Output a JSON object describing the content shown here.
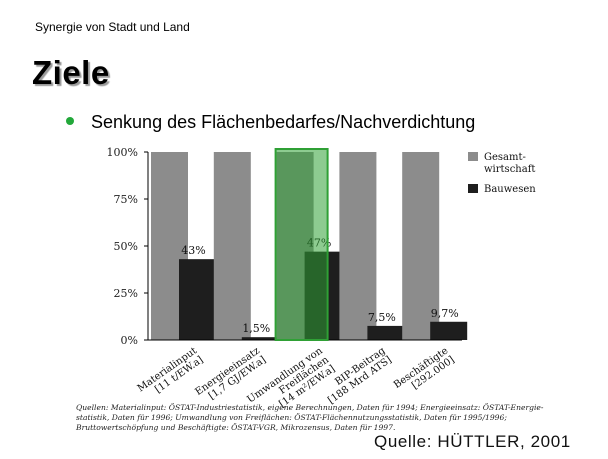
{
  "slide": {
    "top_label": "Synergie von Stadt und Land",
    "title": "Ziele",
    "bullet": "Senkung des Flächenbedarfes/Nachverdichtung",
    "bullet_color": "#22a83a",
    "sources": "Quellen: Materialinput: ÖSTAT-Industriestatistik, eigene Berechnungen, Daten für 1994; Energieeinsatz: ÖSTAT-Energie-statistik, Daten für 1996; Umwandlung von Freiflächen: ÖSTAT-Flächennutzungsstatistik, Daten für 1995/1996; Bruttowertschöpfung und Beschäftigte: ÖSTAT-VGR, Mikrozensus, Daten für 1997.",
    "quelle": "Quelle: HÜTTLER, 2001"
  },
  "chart_data": {
    "type": "bar",
    "categories": [
      [
        "Materialinput",
        "[11 t/EW.a]"
      ],
      [
        "Energieeinsatz",
        "[1,7 GJ/EW.a]"
      ],
      [
        "Umwandlung von",
        "Freiflächen",
        "[14 m²/EW.a]"
      ],
      [
        "BIP-Beitrag",
        "[188 Mrd ATS]"
      ],
      [
        "Beschäftigte",
        "[292.000]"
      ]
    ],
    "series": [
      {
        "name": "Gesamt-wirtschaft",
        "values": [
          100,
          100,
          100,
          100,
          100
        ],
        "color": "#8c8c8c"
      },
      {
        "name": "Bauwesen",
        "values": [
          43,
          1.5,
          47,
          7.5,
          9.7
        ],
        "color": "#1e1e1e"
      }
    ],
    "data_labels": [
      "43%",
      "1,5%",
      "47%",
      "7,5%",
      "9,7%"
    ],
    "yticks": [
      "0%",
      "25%",
      "50%",
      "75%",
      "100%"
    ],
    "ylim": [
      0,
      100
    ],
    "legend_position": "right",
    "highlight_index": 2,
    "highlight_color": "#2fa035"
  }
}
